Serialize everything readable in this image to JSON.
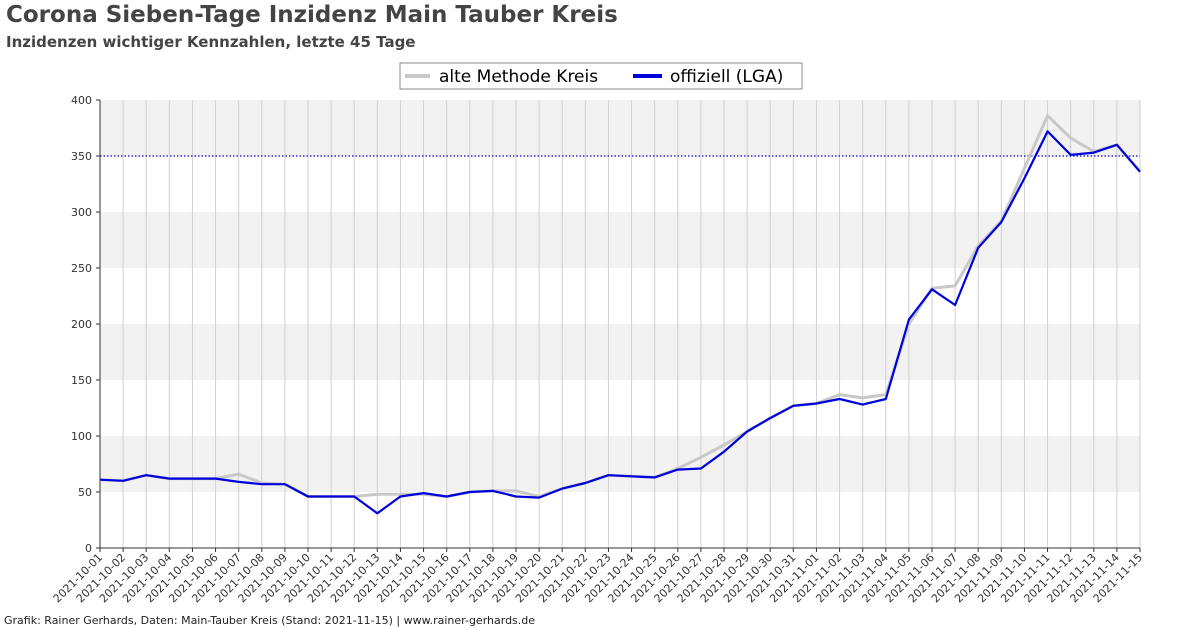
{
  "title": "Corona Sieben-Tage Inzidenz Main Tauber Kreis",
  "subtitle": "Inzidenzen wichtiger Kennzahlen, letzte 45 Tage",
  "footer": "Grafik: Rainer Gerhards, Daten: Main-Tauber Kreis (Stand: 2021-11-15) | www.rainer-gerhards.de",
  "chart_data": {
    "type": "line",
    "title": "Corona Sieben-Tage Inzidenz Main Tauber Kreis",
    "subtitle": "Inzidenzen wichtiger Kennzahlen, letzte 45 Tage",
    "ylim": [
      0,
      400
    ],
    "yticks": [
      0,
      50,
      100,
      150,
      200,
      250,
      300,
      350,
      400
    ],
    "grid": true,
    "legend_position": "top-center",
    "reference_line": {
      "y": 350,
      "color": "#0000cc",
      "style": "dotted"
    },
    "x": [
      "2021-10-01",
      "2021-10-02",
      "2021-10-03",
      "2021-10-04",
      "2021-10-05",
      "2021-10-06",
      "2021-10-07",
      "2021-10-08",
      "2021-10-09",
      "2021-10-10",
      "2021-10-11",
      "2021-10-12",
      "2021-10-13",
      "2021-10-14",
      "2021-10-15",
      "2021-10-16",
      "2021-10-17",
      "2021-10-18",
      "2021-10-19",
      "2021-10-20",
      "2021-10-21",
      "2021-10-22",
      "2021-10-23",
      "2021-10-24",
      "2021-10-25",
      "2021-10-26",
      "2021-10-27",
      "2021-10-28",
      "2021-10-29",
      "2021-10-30",
      "2021-10-31",
      "2021-11-01",
      "2021-11-02",
      "2021-11-03",
      "2021-11-04",
      "2021-11-05",
      "2021-11-06",
      "2021-11-07",
      "2021-11-08",
      "2021-11-09",
      "2021-11-10",
      "2021-11-11",
      "2021-11-12",
      "2021-11-13",
      "2021-11-14",
      "2021-11-15"
    ],
    "series": [
      {
        "name": "alte Methode Kreis",
        "color": "#c8c8c8",
        "values": [
          61,
          60,
          65,
          62,
          62,
          62,
          66,
          58,
          57,
          46,
          46,
          46,
          48,
          48,
          48,
          46,
          50,
          51,
          51,
          46,
          53,
          58,
          65,
          64,
          63,
          71,
          81,
          92,
          104,
          116,
          127,
          129,
          137,
          134,
          137,
          200,
          232,
          234,
          270,
          292,
          339,
          386,
          366,
          354,
          360,
          336
        ]
      },
      {
        "name": "offiziell (LGA)",
        "color": "#0000dd",
        "values": [
          61,
          60,
          65,
          62,
          62,
          62,
          59,
          57,
          57,
          46,
          46,
          46,
          31,
          46,
          49,
          46,
          50,
          51,
          46,
          45,
          53,
          58,
          65,
          64,
          63,
          70,
          71,
          86,
          104,
          116,
          127,
          129,
          133,
          128,
          133,
          204,
          231,
          217,
          268,
          291,
          330,
          372,
          351,
          353,
          360,
          336
        ]
      }
    ]
  }
}
